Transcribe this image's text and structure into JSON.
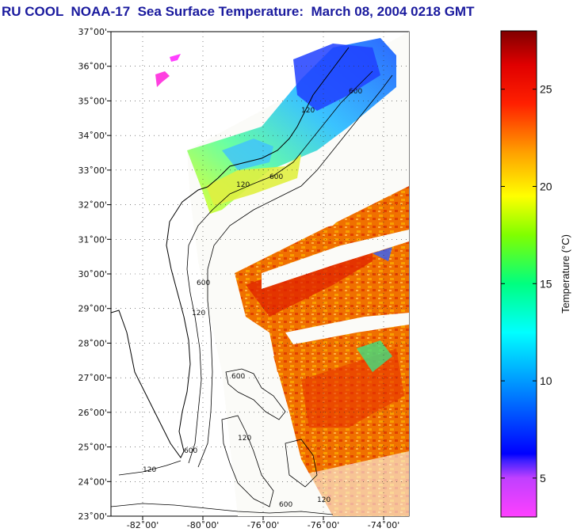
{
  "title": "RU COOL  NOAA-17  Sea Surface Temperature:  March 08, 2004 0218 GMT",
  "map": {
    "lat_labels": [
      "37˚00'",
      "36˚00'",
      "35˚00'",
      "34˚00'",
      "33˚00'",
      "32˚00'",
      "31˚00'",
      "30˚00'",
      "29˚00'",
      "28˚00'",
      "27˚00'",
      "26˚00'",
      "25˚00'",
      "24˚00'",
      "23˚00'"
    ],
    "lon_labels": [
      "-82˚00'",
      "-80˚00'",
      "-76˚00'",
      "-76˚00'",
      "-74˚00'"
    ],
    "contour_labels": [
      "600",
      "120",
      "600",
      "120",
      "600",
      "120",
      "600",
      "120",
      "600",
      "120",
      "600",
      "120"
    ]
  },
  "colorbar": {
    "title": "Temperature (°C)",
    "ticks": [
      {
        "label": "25",
        "value": 25
      },
      {
        "label": "20",
        "value": 20
      },
      {
        "label": "15",
        "value": 15
      },
      {
        "label": "10",
        "value": 10
      },
      {
        "label": "5",
        "value": 5
      }
    ],
    "range": [
      3,
      28
    ]
  },
  "colors": {
    "title": "#1a1a9e",
    "land": "#ffffff",
    "coast": "#000000"
  }
}
